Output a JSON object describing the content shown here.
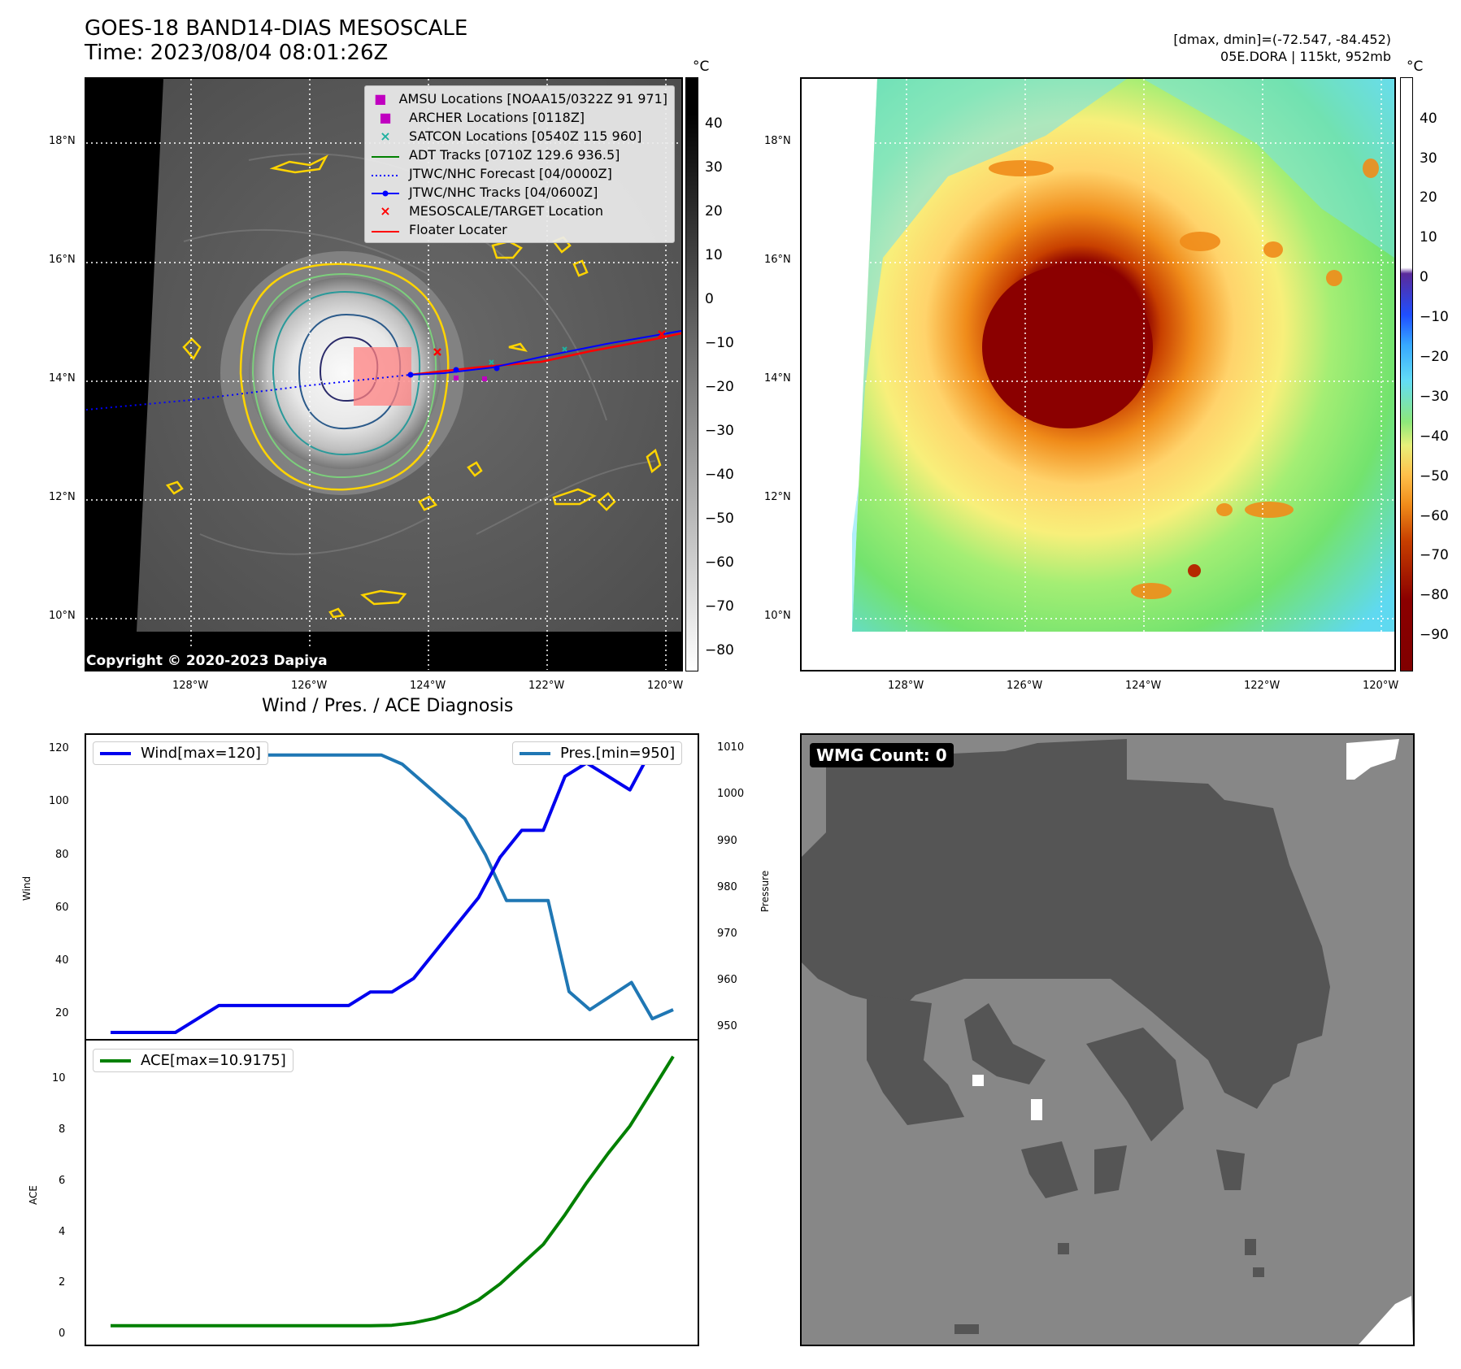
{
  "header": {
    "title": "GOES-18 BAND14-DIAS MESOSCALE",
    "time": "Time: 2023/08/04 08:01:26Z",
    "stats_line1": "[dmax, dmin]=(-72.547, -84.452)",
    "stats_line2": "05E.DORA | 115kt, 952mb"
  },
  "maps": {
    "lat_labels": [
      "18°N",
      "16°N",
      "14°N",
      "12°N",
      "10°N"
    ],
    "lon_labels": [
      "128°W",
      "126°W",
      "124°W",
      "122°W",
      "120°W"
    ],
    "colorbar_unit": "°C",
    "ir_colorbar_ticks": [
      "40",
      "30",
      "20",
      "10",
      "0",
      "−10",
      "−20",
      "−30",
      "−40",
      "−50",
      "−60",
      "−70",
      "−80"
    ],
    "dias_colorbar_ticks": [
      "40",
      "30",
      "20",
      "10",
      "0",
      "−10",
      "−20",
      "−30",
      "−40",
      "−50",
      "−60",
      "−70",
      "−80",
      "−90"
    ],
    "copyright": "Copyright © 2020-2023 Dapiya",
    "legend": [
      {
        "label": "AMSU Locations [NOAA15/0322Z 91 971]",
        "symbol": "■",
        "color": "#c000c0"
      },
      {
        "label": "ARCHER Locations [0118Z]",
        "symbol": "■",
        "color": "#c000c0"
      },
      {
        "label": "SATCON Locations [0540Z 115 960]",
        "symbol": "×",
        "color": "#20b0a0"
      },
      {
        "label": "ADT Tracks [0710Z 129.6 936.5]",
        "symbol": "line",
        "color": "#008000"
      },
      {
        "label": "JTWC/NHC Forecast [04/0000Z]",
        "symbol": "dotted",
        "color": "#0000ff"
      },
      {
        "label": "JTWC/NHC Tracks [04/0600Z]",
        "symbol": "dotline",
        "color": "#0000ff"
      },
      {
        "label": "MESOSCALE/TARGET Location",
        "symbol": "×",
        "color": "#ff0000"
      },
      {
        "label": "Floater Locater",
        "symbol": "line",
        "color": "#ff0000"
      }
    ]
  },
  "diagnosis": {
    "title": "Wind / Pres. / ACE Diagnosis",
    "wind_ylabel": "Wind",
    "pres_ylabel": "Pressure",
    "ace_ylabel": "ACE",
    "wind_ticks": [
      "120",
      "100",
      "80",
      "60",
      "40",
      "20"
    ],
    "pres_ticks": [
      "1010",
      "1000",
      "990",
      "980",
      "970",
      "960",
      "950"
    ],
    "ace_ticks": [
      "10",
      "8",
      "6",
      "4",
      "2",
      "0"
    ]
  },
  "wmg": {
    "label": "WMG Count: 0"
  },
  "chart_data": [
    {
      "type": "line",
      "title": "Wind / Pres. / ACE Diagnosis",
      "ylabel": "Wind",
      "ylim": [
        15,
        123
      ],
      "series": [
        {
          "name": "Wind[max=120]",
          "color": "#0000ee",
          "values": [
            15,
            15,
            15,
            15,
            20,
            25,
            25,
            25,
            25,
            25,
            25,
            25,
            30,
            30,
            35,
            45,
            55,
            65,
            80,
            90,
            90,
            110,
            115,
            110,
            105,
            120,
            120
          ]
        }
      ]
    },
    {
      "type": "line",
      "ylabel": "Pressure",
      "ylim": [
        947,
        1011
      ],
      "series": [
        {
          "name": "Pres.[min=950]",
          "color": "#1f77b4",
          "values": [
            1010,
            1010,
            1010,
            1010,
            1010,
            1009,
            1009,
            1008,
            1008,
            1008,
            1008,
            1008,
            1008,
            1008,
            1006,
            1002,
            998,
            994,
            986,
            976,
            976,
            976,
            956,
            952,
            955,
            958,
            950,
            952
          ]
        }
      ]
    },
    {
      "type": "line",
      "ylabel": "ACE",
      "ylim": [
        -0.5,
        11.3
      ],
      "series": [
        {
          "name": "ACE[max=10.9175]",
          "color": "#008000",
          "values": [
            0,
            0,
            0,
            0,
            0,
            0,
            0,
            0,
            0,
            0,
            0,
            0,
            0,
            0.02,
            0.12,
            0.3,
            0.6,
            1.05,
            1.7,
            2.5,
            3.3,
            4.5,
            5.8,
            7.0,
            8.1,
            9.5,
            10.9175
          ]
        }
      ]
    }
  ]
}
